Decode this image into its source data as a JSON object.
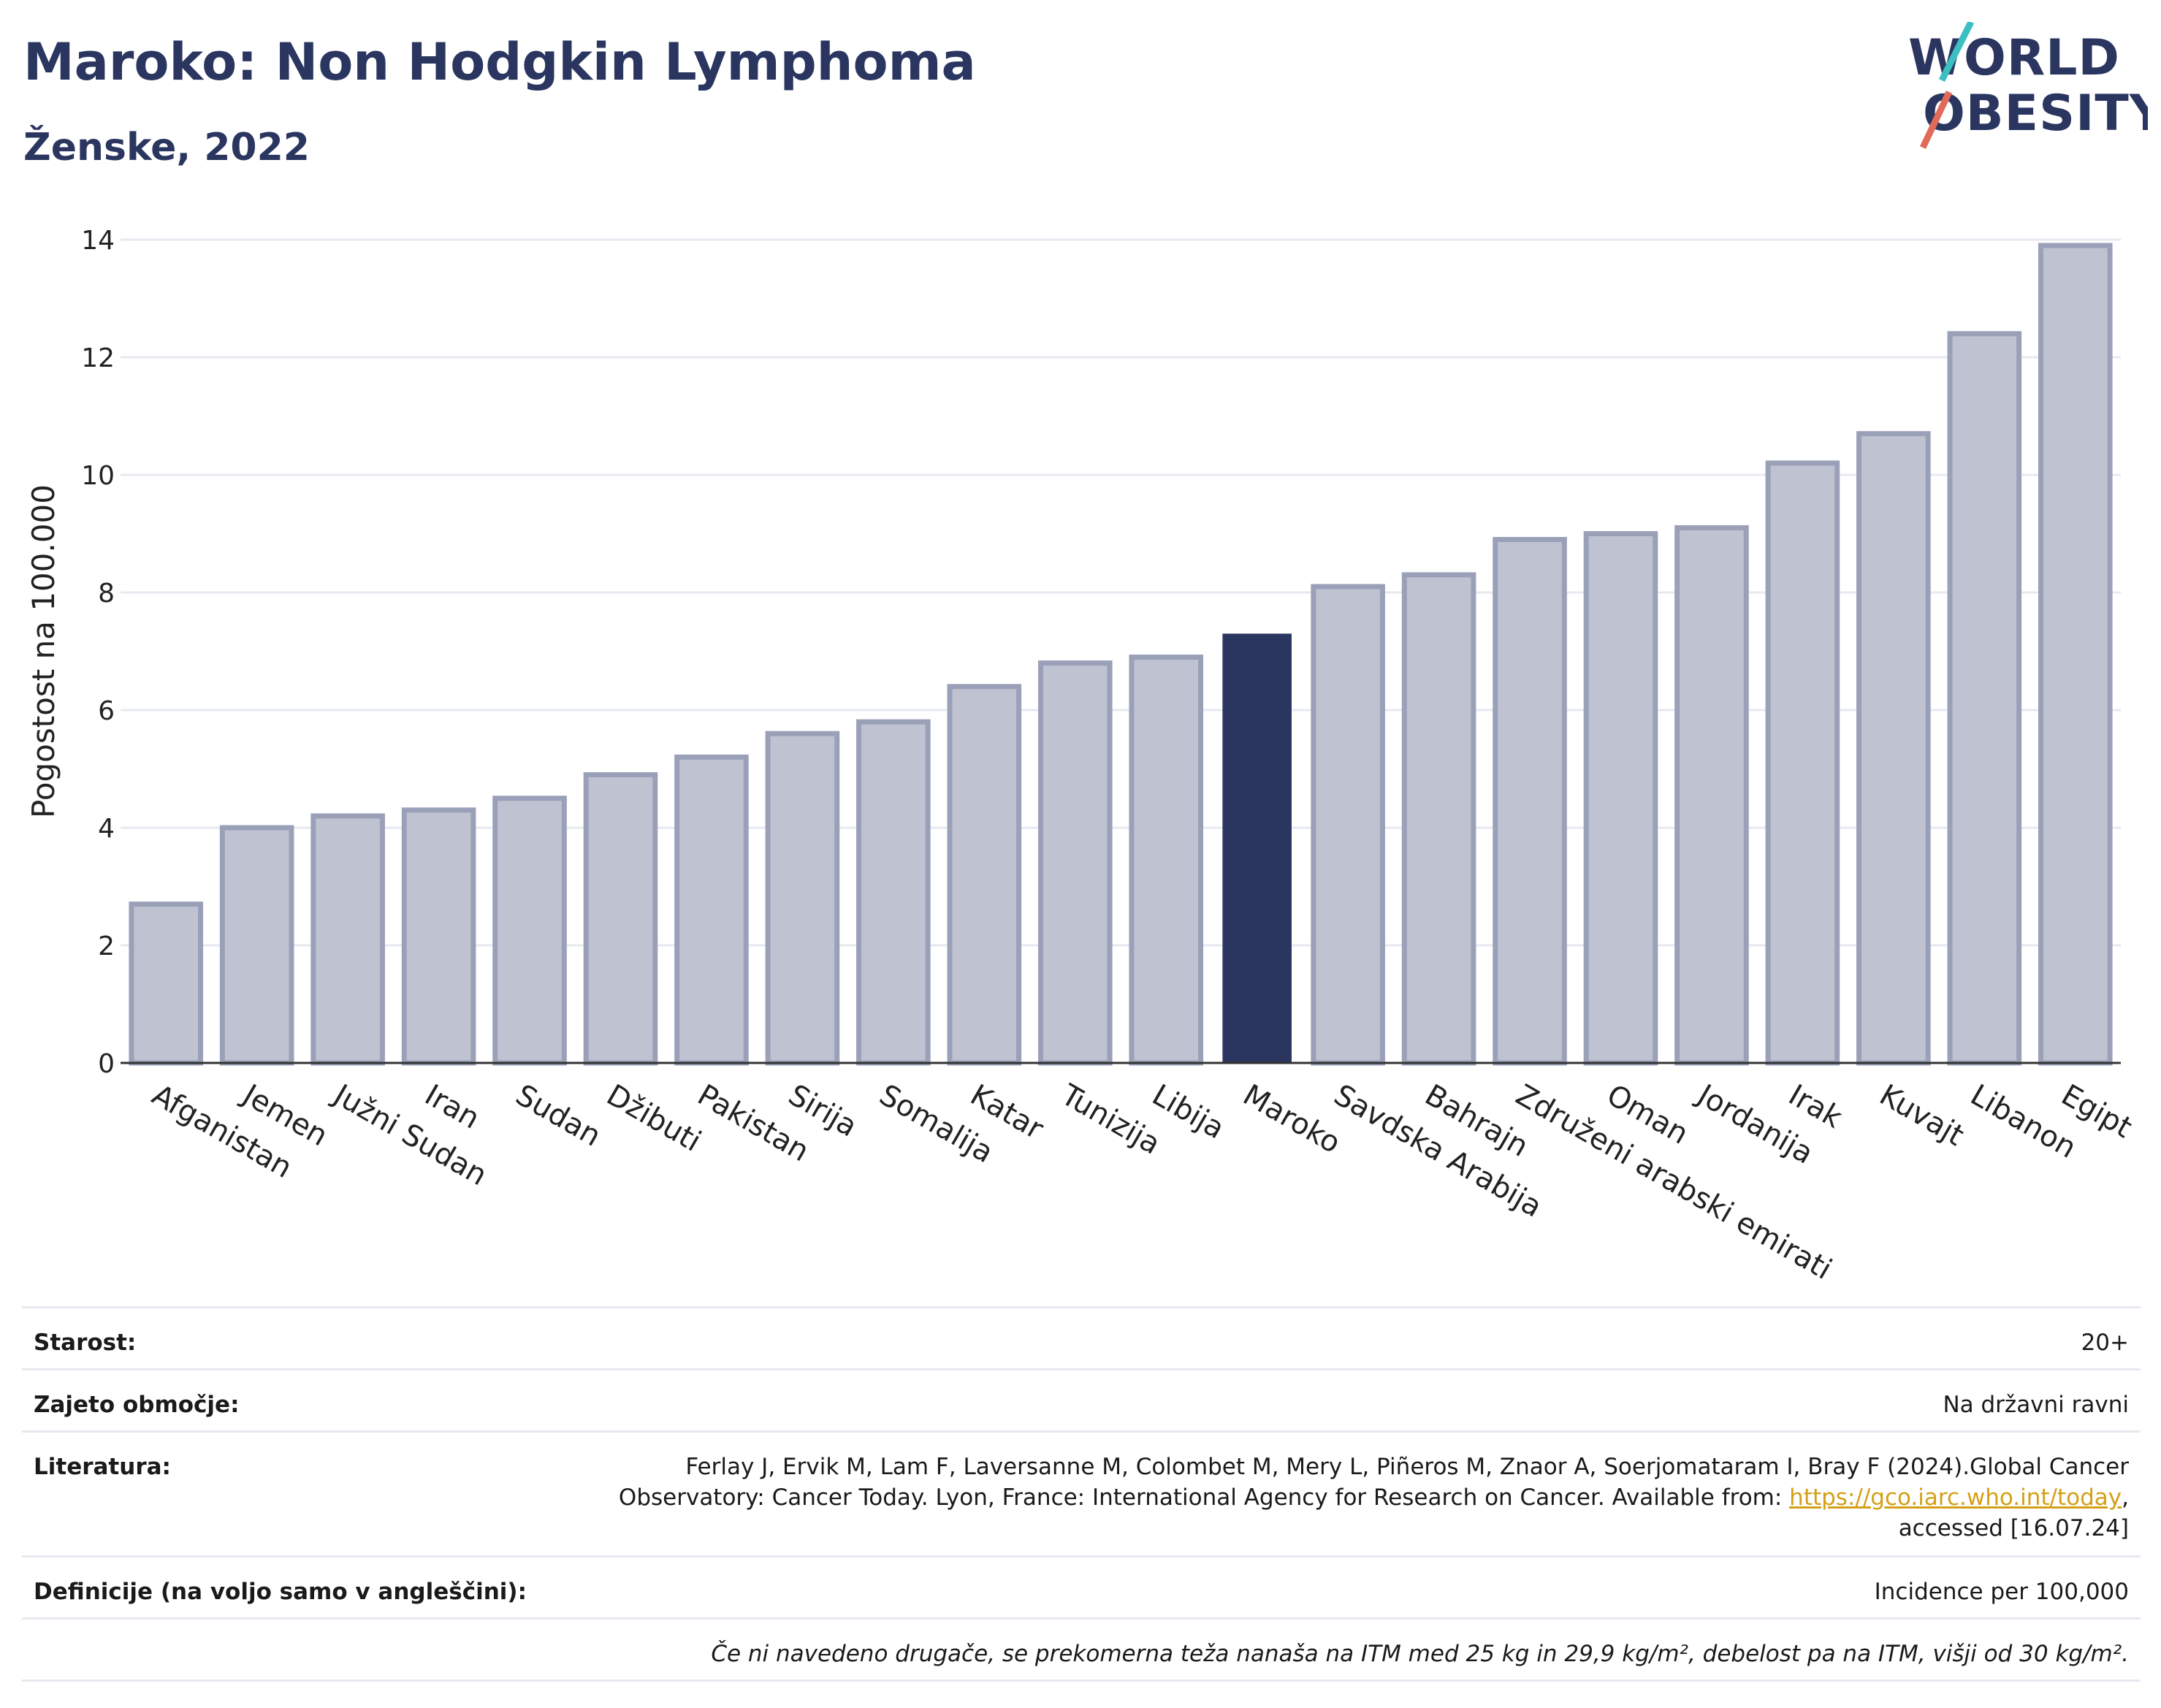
{
  "header": {
    "title": "Maroko: Non Hodgkin Lymphoma",
    "subtitle": "Ženske, 2022"
  },
  "logo": {
    "line1": "WORLD",
    "line2": "OBESITY"
  },
  "colors": {
    "highlight": "#2b3660",
    "bar": "#bfc3d1",
    "bar_border": "#9aa0b8",
    "grid": "#e6e9f0"
  },
  "chart_data": {
    "type": "bar",
    "ylabel": "Pogostost na 100.000",
    "xlabel": "",
    "ylim": [
      0,
      14
    ],
    "yticks": [
      0,
      2,
      4,
      6,
      8,
      10,
      12,
      14
    ],
    "grid": true,
    "highlight": "Maroko",
    "categories": [
      "Afganistan",
      "Jemen",
      "Južni Sudan",
      "Iran",
      "Sudan",
      "Džibuti",
      "Pakistan",
      "Sirija",
      "Somalija",
      "Katar",
      "Tunizija",
      "Libija",
      "Maroko",
      "Savdska Arabija",
      "Bahrajn",
      "Združeni arabski emirati",
      "Oman",
      "Jordanija",
      "Irak",
      "Kuvajt",
      "Libanon",
      "Egipt"
    ],
    "values": [
      2.7,
      4.0,
      4.2,
      4.3,
      4.5,
      4.9,
      5.2,
      5.6,
      5.8,
      6.4,
      6.8,
      6.9,
      7.3,
      8.1,
      8.3,
      8.9,
      9.0,
      9.1,
      10.2,
      10.7,
      12.4,
      13.9
    ]
  },
  "info": {
    "age_label": "Starost:",
    "age_value": "20+",
    "coverage_label": "Zajeto območje:",
    "coverage_value": "Na državni ravni",
    "ref_label": "Literatura:",
    "ref_text_1": "Ferlay J, Ervik M, Lam F, Laversanne M, Colombet M, Mery L, Piñeros M, Znaor A, Soerjomataram I, Bray F (2024).Global Cancer",
    "ref_text_2": "Observatory: Cancer Today. Lyon, France: International Agency for Research on Cancer. Available from: ",
    "ref_link": "https://gco.iarc.who.int/today",
    "ref_text_3": ",",
    "ref_text_4": "accessed [16.07.24]",
    "def_label": "Definicije (na voljo samo v angleščini):",
    "def_value": "Incidence per 100,000",
    "note": "Če ni navedeno drugače, se prekomerna teža nanaša na ITM med 25 kg in 29,9 kg/m², debelost pa na ITM, višji od 30 kg/m²."
  }
}
